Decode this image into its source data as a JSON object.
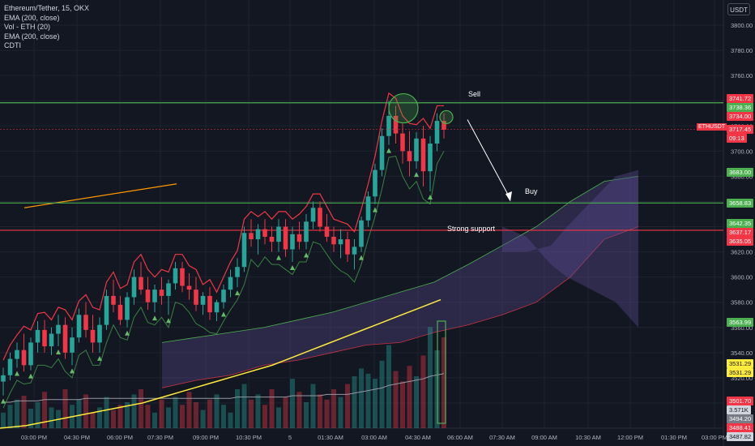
{
  "legend": {
    "symbol": "Ethereum/Tether, 15, OKX",
    "ind1": "EMA (200, close)",
    "ind2": "Vol - ETH (20)",
    "ind3": "EMA (200, close)",
    "ind4": "CDTI"
  },
  "currency_button": "USDT",
  "annotations": {
    "sell": "Sell",
    "buy": "Buy",
    "support": "Strong support"
  },
  "current": {
    "symbol": "ETHUSDT",
    "price": "3717.45",
    "countdown": "09:13"
  },
  "price_tags": [
    {
      "label": "3741.72",
      "value": 3741.72,
      "color": "#f23645",
      "fg": "#ffffff"
    },
    {
      "label": "3738.36",
      "value": 3738.36,
      "color": "#4caf50",
      "fg": "#ffffff"
    },
    {
      "label": "3734.00",
      "value": 3734.0,
      "color": "#f23645",
      "fg": "#ffffff"
    },
    {
      "label": "3683.00",
      "value": 3683.0,
      "color": "#4caf50",
      "fg": "#ffffff"
    },
    {
      "label": "3658.83",
      "value": 3658.83,
      "color": "#4caf50",
      "fg": "#ffffff"
    },
    {
      "label": "3642.35",
      "value": 3642.35,
      "color": "#4caf50",
      "fg": "#ffffff"
    },
    {
      "label": "3637.17",
      "value": 3637.17,
      "color": "#f23645",
      "fg": "#ffffff"
    },
    {
      "label": "3635.05",
      "value": 3635.05,
      "color": "#f23645",
      "fg": "#ffffff"
    },
    {
      "label": "3563.99",
      "value": 3563.99,
      "color": "#4caf50",
      "fg": "#ffffff"
    },
    {
      "label": "3531.29",
      "value": 3531.29,
      "color": "#ffeb3b",
      "fg": "#131722"
    },
    {
      "label": "3531.29",
      "value": 3531.29,
      "color": "#ffeb3b",
      "fg": "#131722"
    },
    {
      "label": "3501.70",
      "value": 3501.7,
      "color": "#f23645",
      "fg": "#ffffff"
    },
    {
      "label": "3.571K",
      "value": 3496.5,
      "color": "#d1d4dc",
      "fg": "#131722"
    },
    {
      "label": "3494.20",
      "value": 3494.2,
      "color": "#787b86",
      "fg": "#ffffff"
    },
    {
      "label": "3488.41",
      "value": 3488.41,
      "color": "#f23645",
      "fg": "#ffffff"
    },
    {
      "label": "3487.82",
      "value": 3487.82,
      "color": "#d1d4dc",
      "fg": "#131722"
    }
  ],
  "colors": {
    "up": "#26a69a",
    "down": "#f23645",
    "green_line": "#4caf50",
    "red_line": "#f23645",
    "ema": "#ffeb3b",
    "orange": "#ff9800",
    "cloud": "#5b4a8f"
  },
  "chart_data": {
    "type": "candlestick",
    "title": "Ethereum/Tether, 15, OKX",
    "ylim": [
      3480,
      3820
    ],
    "y_ticks": [
      3800,
      3780,
      3760,
      3740,
      3720,
      3700,
      3680,
      3660,
      3640,
      3620,
      3600,
      3580,
      3560,
      3540,
      3520,
      3500
    ],
    "x_ticks": [
      "03:00 PM",
      "04:30 PM",
      "06:00 PM",
      "07:30 PM",
      "09:00 PM",
      "10:30 PM",
      "5",
      "01:30 AM",
      "03:00 AM",
      "04:30 AM",
      "06:00 AM",
      "07:30 AM",
      "09:00 AM",
      "10:30 AM",
      "12:00 PM",
      "01:30 PM",
      "03:00 PM"
    ],
    "horizontal_levels": [
      {
        "value": 3738.36,
        "color": "#4caf50"
      },
      {
        "value": 3658.83,
        "color": "#4caf50"
      },
      {
        "value": 3637.17,
        "color": "#f23645"
      }
    ],
    "candles": [
      [
        3517,
        3528,
        3506,
        3522
      ],
      [
        3522,
        3540,
        3518,
        3535
      ],
      [
        3535,
        3548,
        3528,
        3542
      ],
      [
        3542,
        3555,
        3525,
        3530
      ],
      [
        3530,
        3552,
        3526,
        3548
      ],
      [
        3548,
        3565,
        3540,
        3558
      ],
      [
        3558,
        3566,
        3540,
        3545
      ],
      [
        3545,
        3560,
        3538,
        3555
      ],
      [
        3555,
        3570,
        3545,
        3562
      ],
      [
        3562,
        3568,
        3535,
        3540
      ],
      [
        3540,
        3560,
        3530,
        3552
      ],
      [
        3552,
        3575,
        3548,
        3570
      ],
      [
        3570,
        3580,
        3552,
        3558
      ],
      [
        3558,
        3570,
        3540,
        3548
      ],
      [
        3548,
        3568,
        3540,
        3562
      ],
      [
        3562,
        3590,
        3558,
        3585
      ],
      [
        3585,
        3598,
        3572,
        3578
      ],
      [
        3578,
        3585,
        3562,
        3566
      ],
      [
        3566,
        3588,
        3560,
        3584
      ],
      [
        3584,
        3606,
        3578,
        3600
      ],
      [
        3600,
        3612,
        3586,
        3590
      ],
      [
        3590,
        3600,
        3574,
        3580
      ],
      [
        3580,
        3594,
        3572,
        3590
      ],
      [
        3590,
        3600,
        3578,
        3585
      ],
      [
        3585,
        3598,
        3570,
        3595
      ],
      [
        3595,
        3612,
        3590,
        3607
      ],
      [
        3607,
        3612,
        3588,
        3593
      ],
      [
        3593,
        3603,
        3582,
        3590
      ],
      [
        3590,
        3600,
        3573,
        3578
      ],
      [
        3578,
        3588,
        3570,
        3585
      ],
      [
        3585,
        3592,
        3566,
        3572
      ],
      [
        3572,
        3582,
        3565,
        3580
      ],
      [
        3580,
        3594,
        3575,
        3590
      ],
      [
        3590,
        3606,
        3584,
        3600
      ],
      [
        3600,
        3615,
        3592,
        3608
      ],
      [
        3608,
        3640,
        3604,
        3635
      ],
      [
        3635,
        3646,
        3624,
        3630
      ],
      [
        3630,
        3642,
        3618,
        3638
      ],
      [
        3638,
        3646,
        3626,
        3632
      ],
      [
        3632,
        3640,
        3620,
        3628
      ],
      [
        3628,
        3646,
        3620,
        3640
      ],
      [
        3640,
        3646,
        3616,
        3622
      ],
      [
        3622,
        3640,
        3612,
        3634
      ],
      [
        3634,
        3644,
        3622,
        3628
      ],
      [
        3628,
        3650,
        3622,
        3644
      ],
      [
        3644,
        3660,
        3638,
        3655
      ],
      [
        3655,
        3660,
        3636,
        3640
      ],
      [
        3640,
        3650,
        3628,
        3632
      ],
      [
        3632,
        3640,
        3620,
        3626
      ],
      [
        3626,
        3638,
        3615,
        3630
      ],
      [
        3630,
        3636,
        3612,
        3618
      ],
      [
        3618,
        3630,
        3606,
        3624
      ],
      [
        3624,
        3648,
        3620,
        3645
      ],
      [
        3645,
        3668,
        3640,
        3664
      ],
      [
        3664,
        3690,
        3658,
        3685
      ],
      [
        3685,
        3718,
        3680,
        3712
      ],
      [
        3712,
        3740,
        3705,
        3728
      ],
      [
        3728,
        3736,
        3706,
        3714
      ],
      [
        3714,
        3722,
        3690,
        3700
      ],
      [
        3700,
        3716,
        3680,
        3692
      ],
      [
        3692,
        3715,
        3686,
        3710
      ],
      [
        3710,
        3720,
        3672,
        3684
      ],
      [
        3684,
        3712,
        3668,
        3706
      ],
      [
        3706,
        3730,
        3700,
        3724
      ],
      [
        3724,
        3730,
        3710,
        3717
      ]
    ],
    "volume": [
      12,
      18,
      22,
      25,
      15,
      20,
      28,
      16,
      14,
      30,
      18,
      22,
      26,
      12,
      16,
      24,
      14,
      18,
      20,
      26,
      30,
      18,
      12,
      22,
      16,
      24,
      18,
      28,
      20,
      14,
      22,
      26,
      18,
      12,
      30,
      34,
      22,
      26,
      18,
      30,
      16,
      24,
      38,
      28,
      20,
      34,
      26,
      22,
      30,
      24,
      34,
      40,
      46,
      42,
      38,
      52,
      64,
      44,
      36,
      48,
      40,
      56,
      78,
      60,
      70
    ],
    "vol_ma": [
      20,
      20,
      21,
      21,
      21,
      21,
      22,
      22,
      22,
      22,
      22,
      22,
      23,
      23,
      23,
      23,
      23,
      23,
      23,
      23,
      23,
      23,
      23,
      23,
      23,
      23,
      23,
      23,
      23,
      23,
      23,
      23,
      23,
      23,
      24,
      24,
      24,
      24,
      24,
      24,
      24,
      24,
      25,
      25,
      25,
      25,
      25,
      26,
      26,
      26,
      26,
      27,
      28,
      29,
      30,
      31,
      33,
      34,
      35,
      36,
      37,
      38,
      40,
      41,
      42
    ],
    "ema200": [
      3480,
      3481,
      3482,
      3484,
      3486,
      3488,
      3490,
      3492,
      3494,
      3496,
      3498,
      3500,
      3503,
      3506,
      3509,
      3512,
      3515,
      3518,
      3521,
      3524,
      3527,
      3530,
      3534,
      3538,
      3542,
      3546,
      3550,
      3554,
      3558,
      3562,
      3566,
      3570,
      3574,
      3578,
      3582
    ],
    "cloud_upper": [
      3548,
      3552,
      3556,
      3560,
      3566,
      3572,
      3580,
      3588,
      3596,
      3610,
      3625,
      3640,
      3660,
      3676,
      3680
    ],
    "cloud_lower": [
      3512,
      3518,
      3522,
      3530,
      3534,
      3540,
      3546,
      3548,
      3556,
      3562,
      3570,
      3580,
      3600,
      3630,
      3640
    ]
  }
}
